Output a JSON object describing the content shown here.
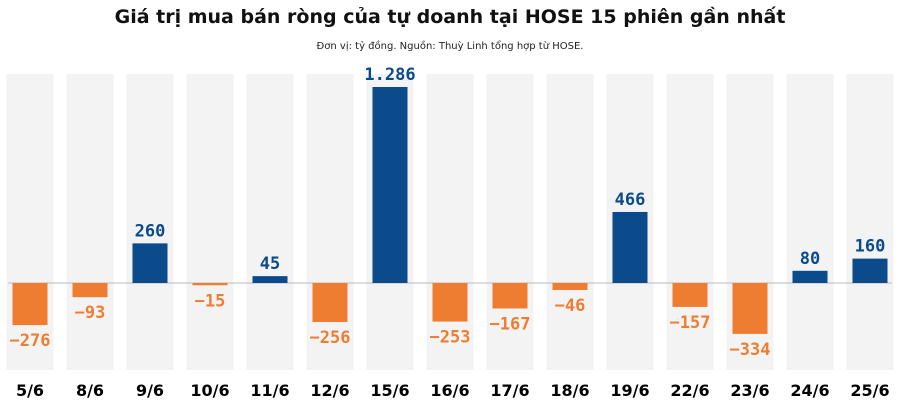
{
  "colors": {
    "positive": "#0b4a8b",
    "negative": "#ee7d31",
    "band": "#f3f3f3",
    "zero_line": "#bbbbbb"
  },
  "chart_data": {
    "type": "bar",
    "title": "Giá trị mua bán ròng của tự doanh tại HOSE 15 phiên gần nhất",
    "subtitle": "Đơn vị: tỷ đồng. Nguồn: Thuỳ Linh tổng hợp từ HOSE.",
    "categories": [
      "5/6",
      "8/6",
      "9/6",
      "10/6",
      "11/6",
      "12/6",
      "15/6",
      "16/6",
      "17/6",
      "18/6",
      "19/6",
      "22/6",
      "23/6",
      "24/6",
      "25/6"
    ],
    "values": [
      -276,
      -93,
      260,
      -15,
      45,
      -256,
      1286,
      -253,
      -167,
      -46,
      466,
      -157,
      -334,
      80,
      160
    ],
    "data_labels": [
      "−276",
      "−93",
      "260",
      "−15",
      "45",
      "−256",
      "1.286",
      "−253",
      "−167",
      "−46",
      "466",
      "−157",
      "−334",
      "80",
      "160"
    ],
    "xlabel": "",
    "ylabel": "",
    "ylim": [
      -400,
      1300
    ],
    "grid": false,
    "legend": "none"
  }
}
